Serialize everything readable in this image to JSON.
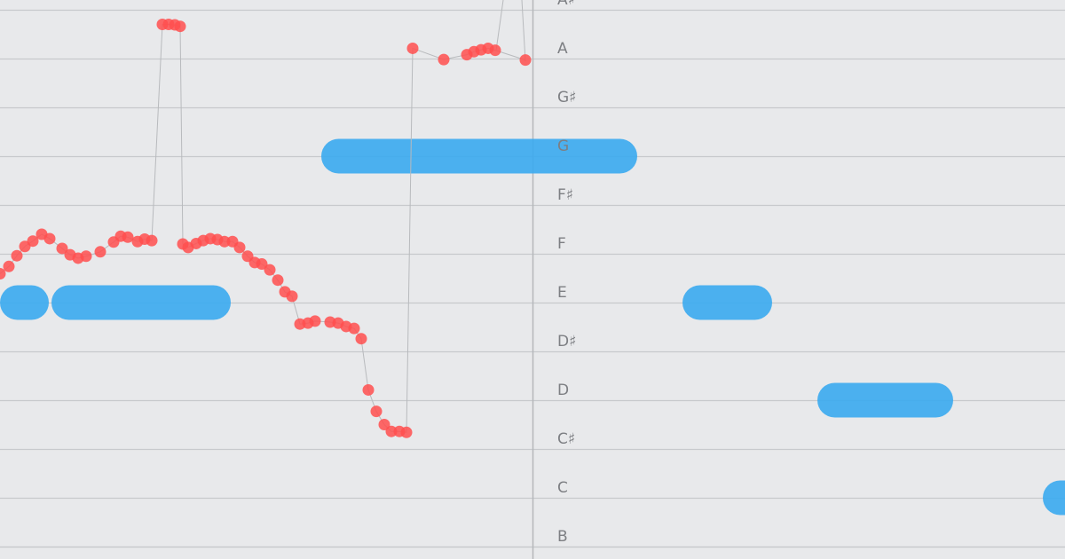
{
  "note_labels": [
    "A♯",
    "A",
    "G♯",
    "G",
    "F♯",
    "F",
    "E",
    "D♯",
    "D",
    "C♯",
    "C",
    "B"
  ],
  "colors": {
    "background": "#e8e9eb",
    "staff_line": "#c7c9cc",
    "playhead": "#b5b7ba",
    "target_note": "#3aaaf0",
    "sung_pitch": "#ff4f4f",
    "pitch_trace": "#b8babd",
    "label": "#7d7f83"
  },
  "target_notes": [
    {
      "pitch": "E",
      "start": 0.0,
      "end": 0.55
    },
    {
      "pitch": "E",
      "start": 0.58,
      "end": 2.6
    },
    {
      "pitch": "G",
      "start": 3.62,
      "end": 7.18
    },
    {
      "pitch": "E",
      "start": 7.69,
      "end": 8.7
    },
    {
      "pitch": "D",
      "start": 9.21,
      "end": 10.74
    },
    {
      "pitch": "C",
      "start": 11.75,
      "end": 12.2
    }
  ],
  "sung_pitch": [
    {
      "t": 0.0,
      "pitch": 0.59
    },
    {
      "t": 0.1,
      "pitch": 0.74
    },
    {
      "t": 0.19,
      "pitch": 0.96
    },
    {
      "t": 0.28,
      "pitch": 1.15
    },
    {
      "t": 0.37,
      "pitch": 1.26
    },
    {
      "t": 0.47,
      "pitch": 1.4
    },
    {
      "t": 0.56,
      "pitch": 1.31
    },
    {
      "t": 0.7,
      "pitch": 1.11
    },
    {
      "t": 0.79,
      "pitch": 0.98
    },
    {
      "t": 0.88,
      "pitch": 0.91
    },
    {
      "t": 0.97,
      "pitch": 0.95
    },
    {
      "t": 1.13,
      "pitch": 1.04
    },
    {
      "t": 1.28,
      "pitch": 1.24
    },
    {
      "t": 1.36,
      "pitch": 1.36
    },
    {
      "t": 1.44,
      "pitch": 1.34
    },
    {
      "t": 1.55,
      "pitch": 1.25
    },
    {
      "t": 1.63,
      "pitch": 1.3
    },
    {
      "t": 1.71,
      "pitch": 1.27
    },
    {
      "t": 1.83,
      "pitch": 5.7
    },
    {
      "t": 1.9,
      "pitch": 5.7
    },
    {
      "t": 1.97,
      "pitch": 5.69
    },
    {
      "t": 2.03,
      "pitch": 5.66
    },
    {
      "t": 2.06,
      "pitch": 1.2
    },
    {
      "t": 2.12,
      "pitch": 1.13
    },
    {
      "t": 2.21,
      "pitch": 1.21
    },
    {
      "t": 2.29,
      "pitch": 1.27
    },
    {
      "t": 2.37,
      "pitch": 1.31
    },
    {
      "t": 2.45,
      "pitch": 1.29
    },
    {
      "t": 2.53,
      "pitch": 1.25
    },
    {
      "t": 2.62,
      "pitch": 1.25
    },
    {
      "t": 2.7,
      "pitch": 1.13
    },
    {
      "t": 2.79,
      "pitch": 0.95
    },
    {
      "t": 2.87,
      "pitch": 0.82
    },
    {
      "t": 2.95,
      "pitch": 0.79
    },
    {
      "t": 3.04,
      "pitch": 0.67
    },
    {
      "t": 3.13,
      "pitch": 0.46
    },
    {
      "t": 3.21,
      "pitch": 0.22
    },
    {
      "t": 3.29,
      "pitch": 0.13
    },
    {
      "t": 3.38,
      "pitch": -0.44
    },
    {
      "t": 3.47,
      "pitch": -0.42
    },
    {
      "t": 3.55,
      "pitch": -0.38
    },
    {
      "t": 3.72,
      "pitch": -0.4
    },
    {
      "t": 3.81,
      "pitch": -0.42
    },
    {
      "t": 3.9,
      "pitch": -0.49
    },
    {
      "t": 3.99,
      "pitch": -0.53
    },
    {
      "t": 4.07,
      "pitch": -0.74
    },
    {
      "t": 4.15,
      "pitch": -1.79
    },
    {
      "t": 4.24,
      "pitch": -2.23
    },
    {
      "t": 4.33,
      "pitch": -2.5
    },
    {
      "t": 4.41,
      "pitch": -2.64
    },
    {
      "t": 4.5,
      "pitch": -2.64
    },
    {
      "t": 4.58,
      "pitch": -2.66
    },
    {
      "t": 4.65,
      "pitch": 5.21
    },
    {
      "t": 5.0,
      "pitch": 4.98
    },
    {
      "t": 5.26,
      "pitch": 5.08
    },
    {
      "t": 5.34,
      "pitch": 5.14
    },
    {
      "t": 5.42,
      "pitch": 5.18
    },
    {
      "t": 5.5,
      "pitch": 5.21
    },
    {
      "t": 5.58,
      "pitch": 5.17
    },
    {
      "t": 5.92,
      "pitch": 4.97
    }
  ]
}
